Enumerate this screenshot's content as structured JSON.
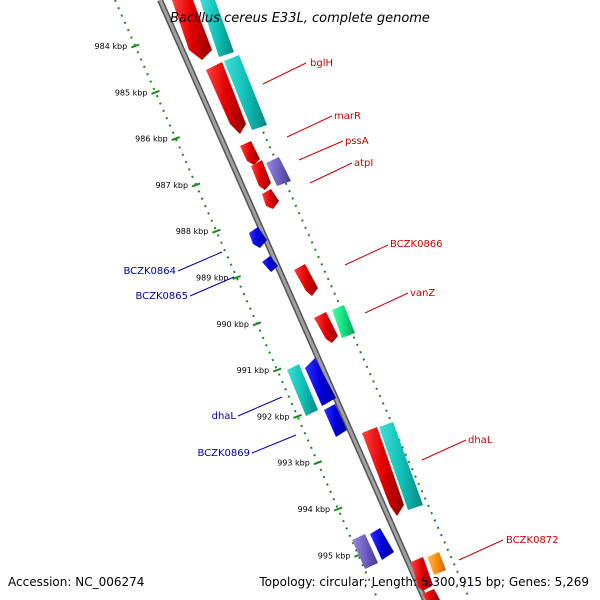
{
  "title": "Bacillus cereus E33L, complete genome",
  "footer": {
    "accession": "Accession: NC_006274",
    "topology": "Topology: circular; Length: 5,300,915 bp; Genes: 5,269"
  },
  "colors": {
    "backbone": "#8a8a8a",
    "tick": "#1a8a1a",
    "forward_label": "#cc0000",
    "reverse_label": "#0000aa"
  },
  "ticks": [
    "984 kbp",
    "985 kbp",
    "986 kbp",
    "987 kbp",
    "988 kbp",
    "989 kbp",
    "990 kbp",
    "991 kbp",
    "992 kbp",
    "993 kbp",
    "994 kbp",
    "995 kbp"
  ],
  "genes": [
    {
      "label": "bglH"
    },
    {
      "label": "marR"
    },
    {
      "label": "pssA"
    },
    {
      "label": "atpI"
    },
    {
      "label": "BCZK0866"
    },
    {
      "label": "vanZ"
    },
    {
      "label": "dhaL"
    },
    {
      "label": "BCZK0872"
    },
    {
      "label": "BCZK0864"
    },
    {
      "label": "BCZK0865"
    },
    {
      "label": "dhaL"
    },
    {
      "label": "BCZK0869"
    }
  ]
}
